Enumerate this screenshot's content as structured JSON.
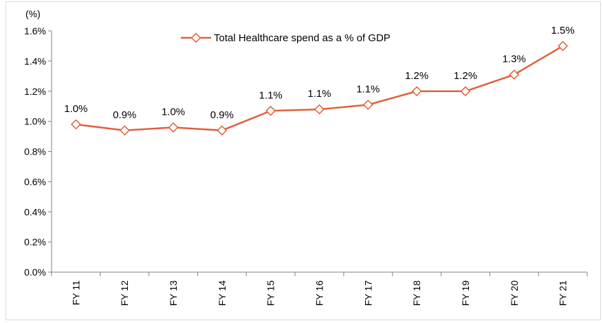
{
  "chart_data": {
    "type": "line",
    "unit_label": "(%)",
    "categories": [
      "FY 11",
      "FY 12",
      "FY 13",
      "FY 14",
      "FY 15",
      "FY 16",
      "FY 17",
      "FY 18",
      "FY 19",
      "FY 20",
      "FY 21"
    ],
    "series": [
      {
        "name": "Total Healthcare spend as a % of GDP",
        "values": [
          0.98,
          0.94,
          0.96,
          0.94,
          1.07,
          1.08,
          1.11,
          1.2,
          1.2,
          1.31,
          1.5
        ],
        "data_labels": [
          "1.0%",
          "0.9%",
          "1.0%",
          "0.9%",
          "1.1%",
          "1.1%",
          "1.1%",
          "1.2%",
          "1.2%",
          "1.3%",
          "1.5%"
        ],
        "color": "#e0603a"
      }
    ],
    "ylim": [
      0,
      1.6
    ],
    "yticks": [
      0,
      0.2,
      0.4,
      0.6,
      0.8,
      1.0,
      1.2,
      1.4,
      1.6
    ],
    "ytick_labels": [
      "0.0%",
      "0.2%",
      "0.4%",
      "0.6%",
      "0.8%",
      "1.0%",
      "1.2%",
      "1.4%",
      "1.6%"
    ],
    "grid": false,
    "legend_position": "top-center",
    "axis_color": "#808080"
  }
}
